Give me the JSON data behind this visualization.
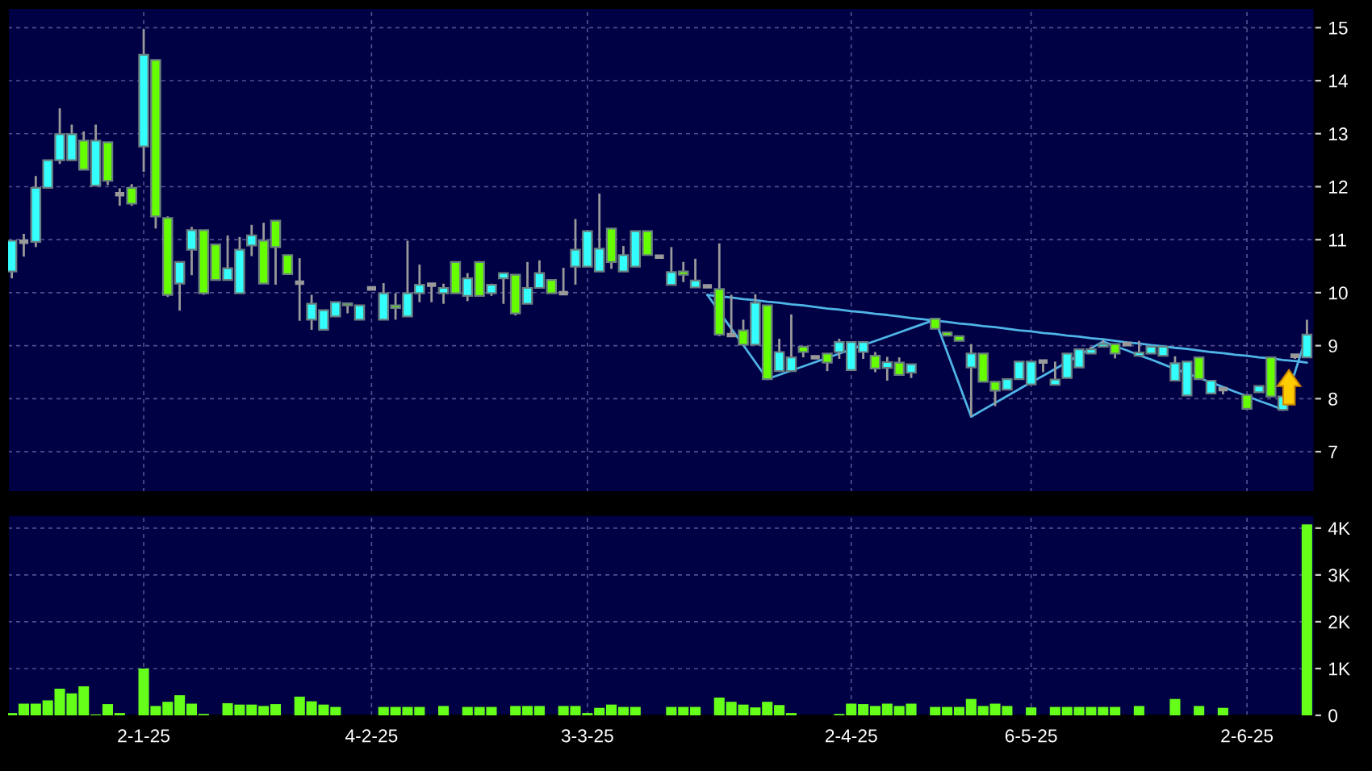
{
  "chart_data": [
    {
      "type": "candlestick",
      "categories": [
        null,
        null,
        null,
        null,
        null,
        null,
        null,
        null,
        null,
        null,
        null,
        null,
        null,
        null,
        null,
        null,
        null,
        null,
        null,
        null,
        null,
        null,
        null,
        null,
        null,
        null,
        null,
        null,
        null,
        null,
        null,
        null,
        null,
        null,
        null,
        null,
        null,
        null,
        null,
        null,
        null,
        null,
        null,
        null,
        null,
        null,
        null,
        null,
        null,
        null,
        null,
        null,
        null,
        null,
        null,
        null,
        null,
        null,
        null,
        null,
        null,
        null,
        null,
        null,
        null,
        null,
        null,
        null,
        null,
        null,
        null,
        null,
        null,
        null,
        null,
        null,
        null,
        null,
        null,
        null,
        null,
        null,
        null,
        null,
        null,
        null,
        null,
        null,
        null,
        null,
        null,
        null,
        null,
        null,
        null,
        null,
        null,
        null,
        null,
        null,
        null,
        null,
        null,
        null,
        null,
        null,
        null,
        null,
        null
      ],
      "ohlc": [
        [
          10.4,
          10.98,
          10.27,
          10.98
        ],
        [
          10.96,
          11.11,
          10.68,
          10.96
        ],
        [
          10.96,
          12.2,
          10.86,
          11.98
        ],
        [
          11.98,
          12.5,
          11.98,
          12.5
        ],
        [
          12.5,
          13.48,
          12.43,
          12.99
        ],
        [
          12.5,
          13.17,
          12.5,
          12.99
        ],
        [
          12.87,
          13.04,
          12.32,
          12.32
        ],
        [
          12.02,
          13.17,
          12.02,
          12.87
        ],
        [
          12.84,
          12.84,
          12.03,
          12.11
        ],
        [
          11.86,
          11.97,
          11.64,
          11.86
        ],
        [
          11.98,
          12.05,
          11.64,
          11.68
        ],
        [
          12.76,
          14.97,
          12.28,
          14.49
        ],
        [
          14.39,
          14.39,
          11.21,
          11.44
        ],
        [
          11.41,
          11.44,
          9.92,
          9.96
        ],
        [
          10.17,
          10.58,
          9.66,
          10.58
        ],
        [
          10.81,
          11.24,
          10.33,
          11.18
        ],
        [
          11.18,
          11.18,
          9.96,
          9.99
        ],
        [
          10.91,
          10.91,
          10.24,
          10.24
        ],
        [
          10.24,
          11.08,
          10.24,
          10.46
        ],
        [
          9.99,
          11.05,
          9.99,
          10.81
        ],
        [
          10.89,
          11.28,
          10.69,
          11.08
        ],
        [
          10.98,
          11.32,
          10.17,
          10.17
        ],
        [
          11.36,
          11.36,
          10.15,
          10.86
        ],
        [
          10.71,
          10.71,
          10.35,
          10.35
        ],
        [
          10.19,
          10.65,
          9.47,
          10.19
        ],
        [
          9.49,
          9.96,
          9.3,
          9.79
        ],
        [
          9.3,
          9.67,
          9.3,
          9.67
        ],
        [
          9.55,
          9.82,
          9.55,
          9.82
        ],
        [
          9.8,
          9.8,
          9.61,
          9.76
        ],
        [
          9.49,
          9.76,
          9.49,
          9.76
        ],
        [
          10.08,
          10.08,
          10.08,
          10.08
        ],
        [
          9.49,
          10.18,
          9.49,
          9.99
        ],
        [
          9.76,
          9.99,
          9.49,
          9.71
        ],
        [
          9.55,
          10.98,
          9.55,
          9.99
        ],
        [
          9.99,
          10.53,
          9.82,
          10.15
        ],
        [
          10.15,
          10.15,
          9.82,
          10.15
        ],
        [
          9.99,
          10.17,
          9.79,
          10.09
        ],
        [
          10.58,
          10.58,
          9.99,
          9.99
        ],
        [
          9.94,
          10.37,
          9.84,
          10.27
        ],
        [
          10.58,
          10.58,
          9.94,
          9.94
        ],
        [
          9.99,
          10.17,
          9.94,
          10.15
        ],
        [
          10.27,
          10.37,
          9.79,
          10.37
        ],
        [
          10.34,
          10.34,
          9.57,
          9.61
        ],
        [
          9.79,
          10.58,
          9.79,
          10.09
        ],
        [
          10.09,
          10.61,
          10.09,
          10.37
        ],
        [
          10.24,
          10.24,
          9.99,
          9.99
        ],
        [
          9.99,
          10.47,
          9.99,
          9.99
        ],
        [
          10.49,
          11.39,
          10.15,
          10.81
        ],
        [
          10.49,
          11.18,
          10.49,
          11.16
        ],
        [
          10.4,
          11.87,
          10.4,
          10.83
        ],
        [
          11.21,
          11.21,
          10.45,
          10.58
        ],
        [
          10.4,
          10.88,
          10.4,
          10.71
        ],
        [
          10.49,
          11.16,
          10.49,
          11.16
        ],
        [
          11.16,
          11.16,
          10.71,
          10.71
        ],
        [
          10.68,
          10.68,
          10.68,
          10.68
        ],
        [
          10.15,
          10.86,
          10.15,
          10.39
        ],
        [
          10.4,
          10.58,
          10.2,
          10.34
        ],
        [
          10.1,
          10.64,
          10.1,
          10.23
        ],
        [
          10.12,
          10.12,
          10.12,
          10.12
        ],
        [
          10.07,
          10.93,
          9.18,
          9.21
        ],
        [
          9.2,
          9.96,
          9.18,
          9.2
        ],
        [
          9.29,
          9.49,
          9.02,
          9.02
        ],
        [
          9.02,
          9.97,
          9.02,
          9.81
        ],
        [
          9.76,
          9.76,
          8.37,
          8.37
        ],
        [
          8.52,
          9.13,
          8.52,
          8.88
        ],
        [
          8.52,
          9.59,
          8.52,
          8.78
        ],
        [
          8.98,
          8.98,
          8.78,
          8.88
        ],
        [
          8.78,
          8.78,
          8.78,
          8.78
        ],
        [
          8.85,
          8.85,
          8.52,
          8.68
        ],
        [
          8.88,
          9.13,
          8.75,
          9.07
        ],
        [
          8.54,
          9.07,
          8.52,
          9.07
        ],
        [
          8.88,
          9.07,
          8.75,
          9.07
        ],
        [
          8.81,
          8.88,
          8.5,
          8.57
        ],
        [
          8.58,
          8.79,
          8.34,
          8.69
        ],
        [
          8.68,
          8.78,
          8.45,
          8.45
        ],
        [
          8.49,
          8.65,
          8.39,
          8.65
        ],
        null,
        [
          9.51,
          9.51,
          9.32,
          9.32
        ],
        [
          9.25,
          9.25,
          9.19,
          9.19
        ],
        [
          9.18,
          9.18,
          9.09,
          9.09
        ],
        [
          8.59,
          9.03,
          7.66,
          8.85
        ],
        [
          8.85,
          8.85,
          8.32,
          8.32
        ],
        [
          8.32,
          8.32,
          7.86,
          8.15
        ],
        [
          8.17,
          8.37,
          8.17,
          8.37
        ],
        [
          8.37,
          8.7,
          8.37,
          8.7
        ],
        [
          8.27,
          8.7,
          8.27,
          8.7
        ],
        [
          8.7,
          8.7,
          8.5,
          8.7
        ],
        [
          8.26,
          8.7,
          8.26,
          8.36
        ],
        [
          8.39,
          8.85,
          8.39,
          8.85
        ],
        [
          8.59,
          8.93,
          8.59,
          8.93
        ],
        [
          8.85,
          8.98,
          8.85,
          8.93
        ],
        [
          8.98,
          9.1,
          8.98,
          9.03
        ],
        [
          9.03,
          9.03,
          8.76,
          8.85
        ],
        [
          9.03,
          9.03,
          9.03,
          9.03
        ],
        [
          8.81,
          9.09,
          8.81,
          8.87
        ],
        [
          8.85,
          8.98,
          8.85,
          8.98
        ],
        [
          8.81,
          8.98,
          8.81,
          8.98
        ],
        [
          8.34,
          8.8,
          8.34,
          8.67
        ],
        [
          8.06,
          8.7,
          8.06,
          8.7
        ],
        [
          8.78,
          8.78,
          8.37,
          8.37
        ],
        [
          8.1,
          8.34,
          8.1,
          8.34
        ],
        [
          8.18,
          8.18,
          8.08,
          8.18
        ],
        null,
        [
          8.07,
          8.07,
          7.81,
          7.81
        ],
        [
          8.12,
          8.24,
          8.12,
          8.24
        ],
        [
          8.78,
          8.78,
          8.04,
          8.04
        ],
        [
          7.79,
          8.04,
          7.79,
          8.04
        ],
        [
          8.81,
          8.81,
          8.75,
          8.81
        ],
        [
          8.78,
          9.49,
          8.78,
          9.21
        ]
      ],
      "colors": [
        "#33ffff",
        "#999999",
        "#33ffff",
        "#33ffff",
        "#33ffff",
        "#33ffff",
        "#66ff00",
        "#33ffff",
        "#66ff00",
        "#999999",
        "#66ff00",
        "#33ffff",
        "#66ff00",
        "#66ff00",
        "#33ffff",
        "#33ffff",
        "#66ff00",
        "#66ff00",
        "#33ffff",
        "#33ffff",
        "#33ffff",
        "#66ff00",
        "#66ff00",
        "#66ff00",
        "#999999",
        "#33ffff",
        "#33ffff",
        "#33ffff",
        "#66ff00",
        "#33ffff",
        "#999999",
        "#33ffff",
        "#66ff00",
        "#33ffff",
        "#33ffff",
        "#999999",
        "#33ffff",
        "#66ff00",
        "#33ffff",
        "#66ff00",
        "#33ffff",
        "#33ffff",
        "#66ff00",
        "#33ffff",
        "#33ffff",
        "#66ff00",
        "#999999",
        "#33ffff",
        "#33ffff",
        "#33ffff",
        "#66ff00",
        "#33ffff",
        "#33ffff",
        "#66ff00",
        "#999999",
        "#33ffff",
        "#66ff00",
        "#33ffff",
        "#999999",
        "#66ff00",
        "#999999",
        "#66ff00",
        "#33ffff",
        "#66ff00",
        "#33ffff",
        "#33ffff",
        "#66ff00",
        "#999999",
        "#66ff00",
        "#33ffff",
        "#33ffff",
        "#33ffff",
        "#66ff00",
        "#33ffff",
        "#66ff00",
        "#33ffff",
        null,
        "#66ff00",
        "#66ff00",
        "#66ff00",
        "#33ffff",
        "#66ff00",
        "#66ff00",
        "#33ffff",
        "#33ffff",
        "#33ffff",
        "#999999",
        "#33ffff",
        "#33ffff",
        "#33ffff",
        "#33ffff",
        "#33ffff",
        "#66ff00",
        "#999999",
        "#33ffff",
        "#33ffff",
        "#33ffff",
        "#33ffff",
        "#33ffff",
        "#66ff00",
        "#33ffff",
        "#999999",
        null,
        "#66ff00",
        "#33ffff",
        "#66ff00",
        "#33ffff",
        "#999999",
        "#33ffff"
      ],
      "series": [
        {
          "type": "line",
          "color": "#4fb4e6",
          "values": [
            null,
            null,
            null,
            null,
            null,
            null,
            null,
            null,
            null,
            null,
            null,
            null,
            null,
            null,
            null,
            null,
            null,
            null,
            null,
            null,
            null,
            null,
            null,
            null,
            null,
            null,
            null,
            null,
            null,
            null,
            null,
            null,
            null,
            null,
            null,
            null,
            null,
            null,
            null,
            null,
            null,
            null,
            null,
            null,
            null,
            null,
            null,
            null,
            null,
            null,
            null,
            null,
            null,
            null,
            null,
            null,
            null,
            null,
            9.96,
            9.93,
            9.91,
            9.88,
            9.86,
            9.83,
            9.81,
            9.78,
            9.76,
            9.73,
            9.7,
            9.68,
            9.65,
            9.63,
            9.6,
            9.58,
            9.55,
            9.52,
            9.5,
            9.47,
            9.45,
            9.42,
            9.4,
            9.37,
            9.35,
            9.32,
            9.29,
            9.27,
            9.24,
            9.22,
            9.19,
            9.17,
            9.14,
            9.12,
            9.09,
            9.06,
            9.04,
            9.01,
            8.99,
            8.96,
            8.94,
            8.91,
            8.88,
            8.86,
            8.83,
            8.81,
            8.78,
            8.76,
            8.73,
            8.71,
            8.68
          ]
        },
        {
          "type": "line",
          "color": "#4fb4e6",
          "values": [
            null,
            null,
            null,
            null,
            null,
            null,
            null,
            null,
            null,
            null,
            null,
            null,
            null,
            null,
            null,
            null,
            null,
            null,
            null,
            null,
            null,
            null,
            null,
            null,
            null,
            null,
            null,
            null,
            null,
            null,
            null,
            null,
            null,
            null,
            null,
            null,
            null,
            null,
            null,
            null,
            null,
            null,
            null,
            null,
            null,
            null,
            null,
            null,
            null,
            null,
            null,
            null,
            null,
            null,
            null,
            null,
            null,
            null,
            9.96,
            9.64,
            9.32,
            9.01,
            8.69,
            8.37,
            8.45,
            8.53,
            8.61,
            8.69,
            8.77,
            8.85,
            8.93,
            9.01,
            9.09,
            9.17,
            9.25,
            9.33,
            9.41,
            9.49,
            8.88,
            8.27,
            7.66,
            7.79,
            7.92,
            8.05,
            8.18,
            8.31,
            8.43,
            8.56,
            8.69,
            8.82,
            8.95,
            9.08,
            8.99,
            8.91,
            8.82,
            8.74,
            8.65,
            8.56,
            8.48,
            8.39,
            8.31,
            8.22,
            8.13,
            8.05,
            7.96,
            7.88,
            7.79,
            8.5,
            9.21
          ]
        }
      ],
      "ylim": [
        6.24,
        15.37
      ],
      "yticks": [
        7,
        8,
        9,
        10,
        11,
        12,
        13,
        14,
        15
      ],
      "grid": true
    },
    {
      "type": "bar",
      "categories": [
        null,
        null,
        null,
        null,
        null,
        null,
        null,
        null,
        null,
        null,
        null,
        "2-1-25",
        null,
        null,
        null,
        null,
        null,
        null,
        null,
        null,
        null,
        null,
        null,
        null,
        null,
        null,
        null,
        null,
        null,
        null,
        "4-2-25",
        null,
        null,
        null,
        null,
        null,
        null,
        null,
        null,
        null,
        null,
        null,
        null,
        null,
        null,
        null,
        null,
        null,
        "3-3-25",
        null,
        null,
        null,
        null,
        null,
        null,
        null,
        null,
        null,
        null,
        null,
        null,
        null,
        null,
        null,
        null,
        null,
        null,
        null,
        null,
        null,
        "2-4-25",
        null,
        null,
        null,
        null,
        null,
        null,
        null,
        null,
        null,
        null,
        null,
        null,
        null,
        null,
        "6-5-25",
        null,
        null,
        null,
        null,
        null,
        null,
        null,
        null,
        null,
        null,
        null,
        null,
        null,
        null,
        null,
        null,
        null,
        "2-6-25",
        null,
        null,
        null,
        null,
        null
      ],
      "values": [
        50,
        250,
        250,
        320,
        570,
        470,
        620,
        20,
        240,
        50,
        0,
        1000,
        200,
        290,
        430,
        250,
        30,
        0,
        260,
        230,
        230,
        200,
        240,
        0,
        400,
        300,
        230,
        180,
        0,
        0,
        0,
        180,
        180,
        180,
        180,
        0,
        200,
        0,
        180,
        180,
        180,
        0,
        200,
        200,
        200,
        0,
        200,
        200,
        50,
        160,
        230,
        180,
        180,
        0,
        0,
        180,
        180,
        180,
        0,
        380,
        290,
        230,
        170,
        290,
        220,
        50,
        0,
        0,
        0,
        30,
        250,
        240,
        200,
        250,
        200,
        250,
        0,
        180,
        180,
        180,
        350,
        200,
        250,
        200,
        0,
        170,
        0,
        180,
        180,
        180,
        180,
        180,
        180,
        0,
        200,
        0,
        0,
        350,
        0,
        200,
        0,
        160,
        0,
        0,
        0,
        0,
        0,
        0,
        4080
      ],
      "color": "#66ff1a",
      "ylim": [
        0,
        4280
      ],
      "yticks": [
        0,
        {
          "value": 1000,
          "label": "1K"
        },
        {
          "value": 2000,
          "label": "2K"
        },
        {
          "value": 3000,
          "label": "3K"
        },
        {
          "value": 4000,
          "label": "4K"
        }
      ],
      "grid": true
    }
  ]
}
